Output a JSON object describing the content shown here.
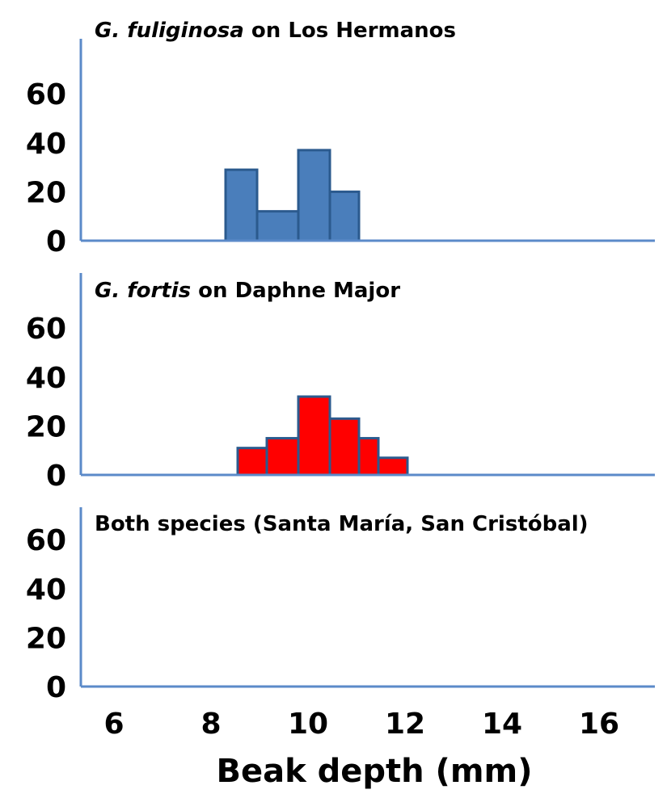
{
  "chart_data": {
    "type": "bar",
    "xlabel": "Beak depth (mm)",
    "xlim": [
      5.3,
      16.6
    ],
    "xticks": [
      "6",
      "8",
      "10",
      "12",
      "14",
      "16"
    ],
    "yticks": [
      "0",
      "20",
      "40",
      "60"
    ],
    "ylim": [
      0,
      80
    ],
    "panels": [
      {
        "title_italic": "G. fuliginosa",
        "title_rest": " on Los Hermanos",
        "fill_color": "#4a7ebb",
        "edge_color": "#2b5a8e",
        "bars": [
          {
            "x0": 8.3,
            "x1": 8.95,
            "value": 29
          },
          {
            "x0": 8.95,
            "x1": 9.8,
            "value": 12
          },
          {
            "x0": 9.8,
            "x1": 10.45,
            "value": 37
          },
          {
            "x0": 10.45,
            "x1": 11.05,
            "value": 20
          }
        ]
      },
      {
        "title_italic": "G. fortis",
        "title_rest": " on Daphne Major",
        "fill_color": "#ff0000",
        "edge_color": "#2b5a8e",
        "bars": [
          {
            "x0": 8.55,
            "x1": 9.15,
            "value": 11
          },
          {
            "x0": 9.15,
            "x1": 9.8,
            "value": 15
          },
          {
            "x0": 9.8,
            "x1": 10.45,
            "value": 32
          },
          {
            "x0": 10.45,
            "x1": 11.05,
            "value": 23
          },
          {
            "x0": 11.05,
            "x1": 11.45,
            "value": 15
          },
          {
            "x0": 11.45,
            "x1": 12.05,
            "value": 7
          }
        ]
      },
      {
        "title_italic": "",
        "title_rest": "Both species (Santa María, San Cristóbal)",
        "fill_color": "#4a7ebb",
        "edge_color": "#2b5a8e",
        "bars": []
      }
    ]
  }
}
